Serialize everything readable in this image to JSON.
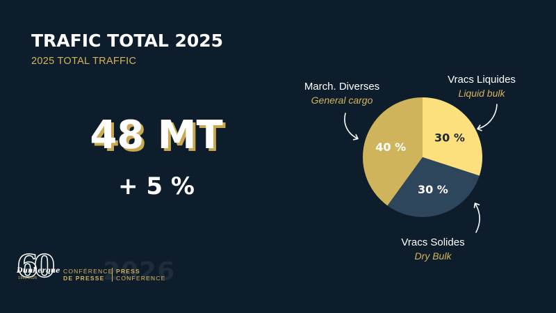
{
  "title": "TRAFIC TOTAL 2025",
  "subtitle": "2025 TOTAL TRAFFIC",
  "total_value": "48 MT",
  "growth": "+ 5 %",
  "colors": {
    "background": "#0e1d2c",
    "gold": "#d4b45c",
    "general_cargo": "#d0b45c",
    "liquid_bulk": "#fde07e",
    "dry_bulk": "#2e465c"
  },
  "chart_data": {
    "type": "pie",
    "slices": [
      {
        "label_fr": "Vracs Liquides",
        "label_en": "Liquid bulk",
        "value": 30,
        "value_label": "30 %",
        "color": "#fde07e",
        "text_color": "#1d2733"
      },
      {
        "label_fr": "Vracs Solides",
        "label_en": "Dry Bulk",
        "value": 30,
        "value_label": "30 %",
        "color": "#2e465c",
        "text_color": "#ffffff"
      },
      {
        "label_fr": "March. Diverses",
        "label_en": "General cargo",
        "value": 40,
        "value_label": "40 %",
        "color": "#d0b45c",
        "text_color": "#ffffff"
      }
    ]
  },
  "footer": {
    "logo_number": "60",
    "logo_name": "Dunkerque",
    "logo_years": "1966-2026",
    "watermark_year": "2026",
    "conference_fr_line1": "CONFÉRENCE",
    "conference_fr_line2": "DE PRESSE",
    "conference_en_line1": "PRESS",
    "conference_en_line2": "CONFERENCE"
  }
}
